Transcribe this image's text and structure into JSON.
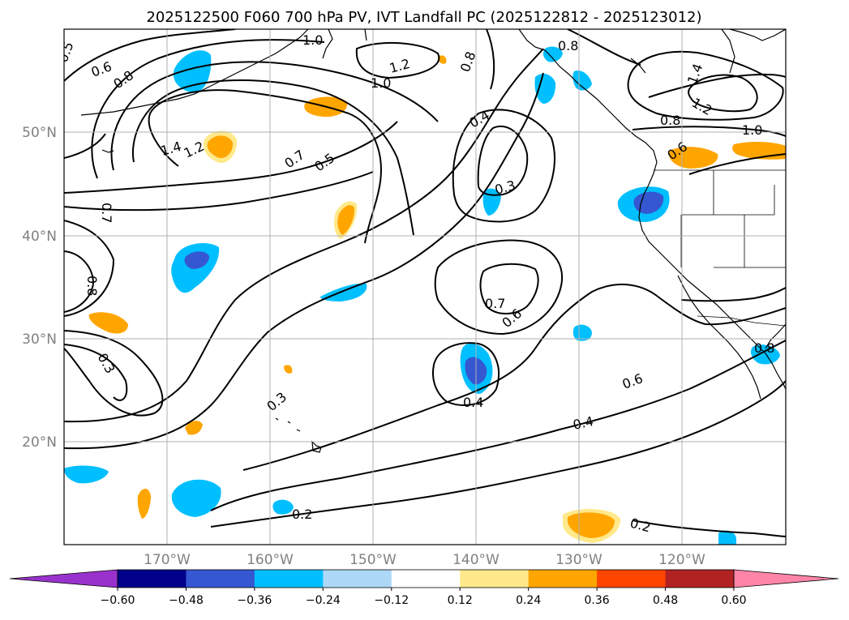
{
  "title": "2025122500 F060 700 hPa PV, IVT Landfall PC (2025122812 - 2025123012)",
  "map": {
    "lon_range": [
      -180,
      -110
    ],
    "lat_range": [
      10,
      60
    ],
    "grid": true
  },
  "lat_labels": [
    "50°N",
    "40°N",
    "30°N",
    "20°N"
  ],
  "lon_labels": [
    "170°W",
    "160°W",
    "150°W",
    "140°W",
    "130°W",
    "120°W"
  ],
  "colorbar": {
    "ticks": [
      "−0.60",
      "−0.48",
      "−0.36",
      "−0.24",
      "−0.12",
      "0.12",
      "0.24",
      "0.36",
      "0.48",
      "0.60"
    ],
    "colors": [
      "#9932cc",
      "#00008b",
      "#3557d1",
      "#00bfff",
      "#add8f7",
      "#ffffff",
      "#ffe98a",
      "#ffa500",
      "#ff4500",
      "#b22222",
      "#ff85a8"
    ],
    "extend": "both"
  },
  "contour_labels": [
    "1.0",
    "1.2",
    "1.0",
    "0.8",
    "0.8",
    "0.5",
    "0.6",
    "0.8",
    "1.4",
    "1.2",
    "0.7",
    "0.5",
    "0.4",
    "0.3",
    "0.7",
    "0.8",
    "0.3",
    "0.7",
    "0.6",
    "0.3",
    "0.4",
    "0.6",
    "0.4",
    "0.2",
    "0.2",
    "1.4",
    "1.2",
    "0.8",
    "1.0",
    "0.6",
    "0.8"
  ]
}
